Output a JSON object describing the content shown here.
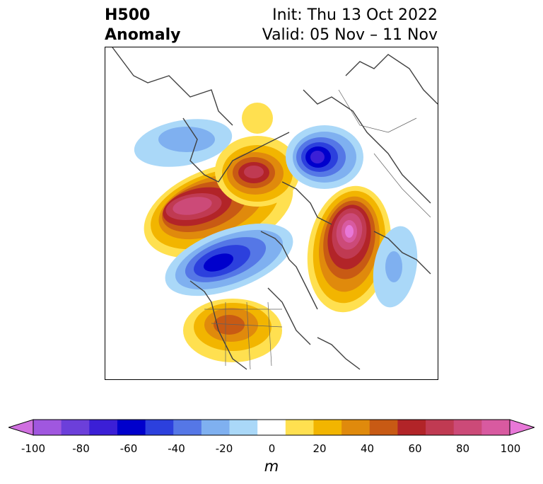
{
  "title": {
    "left_line1": "H500",
    "left_line2": "Anomaly",
    "right_line1": "Init: Thu 13 Oct 2022",
    "right_line2": "Valid: 05 Nov – 11 Nov"
  },
  "colorbar": {
    "label": "m",
    "ticks": [
      "-100",
      "-80",
      "-60",
      "-40",
      "-20",
      "0",
      "20",
      "40",
      "60",
      "80",
      "100"
    ],
    "colors": [
      "#d070e0",
      "#a057df",
      "#6c3fda",
      "#3b1fd6",
      "#0000cc",
      "#2c40dd",
      "#5577e6",
      "#7fb0f0",
      "#aad8f8",
      "#ffffff",
      "#ffe050",
      "#f2b500",
      "#e08a0c",
      "#c85a14",
      "#b22428",
      "#c03a52",
      "#cc4a78",
      "#d85aa0",
      "#e878d8"
    ]
  },
  "map": {
    "projection": "polar-stereographic",
    "anomalies": [
      {
        "name": "alaska-bering-ridge",
        "sign": "positive",
        "peak_m": 80
      },
      {
        "name": "arctic-canada-ridge",
        "sign": "positive",
        "peak_m": 60
      },
      {
        "name": "north-atlantic-ridge",
        "sign": "positive",
        "peak_m": 100
      },
      {
        "name": "western-us-ridge",
        "sign": "positive",
        "peak_m": 50
      },
      {
        "name": "siberia-trough",
        "sign": "negative",
        "peak_m": -70
      },
      {
        "name": "north-pacific-trough",
        "sign": "negative",
        "peak_m": -60
      },
      {
        "name": "chukotka-trough",
        "sign": "negative",
        "peak_m": -30
      },
      {
        "name": "east-atlantic-trough",
        "sign": "negative",
        "peak_m": -30
      }
    ]
  }
}
